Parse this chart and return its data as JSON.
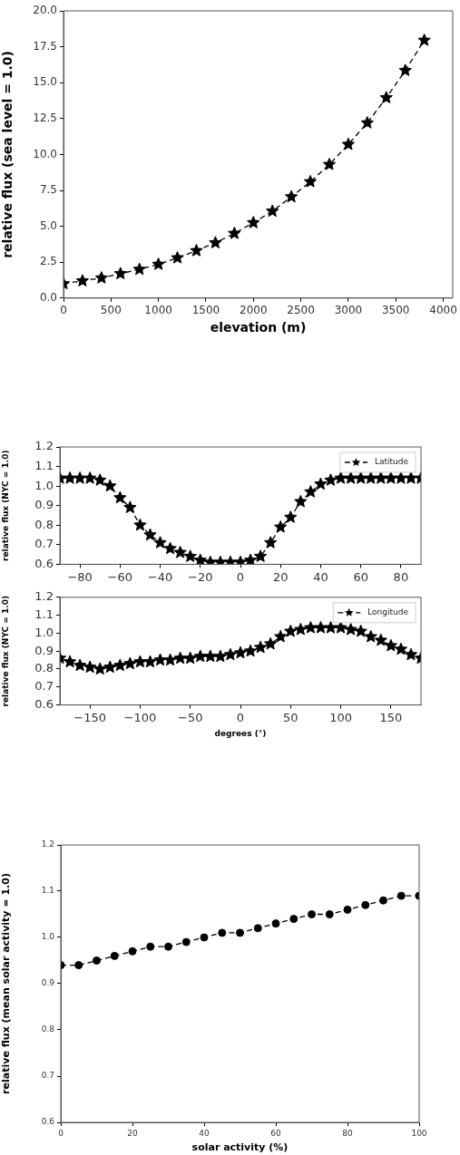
{
  "chart_data": [
    {
      "type": "line",
      "xlabel": "elevation (m)",
      "ylabel": "relative flux (sea level = 1.0)",
      "marker": "star",
      "line_style": "dashed",
      "grid": false,
      "legend": false,
      "x": [
        0,
        200,
        400,
        600,
        800,
        1000,
        1200,
        1400,
        1600,
        1800,
        2000,
        2200,
        2400,
        2600,
        2800,
        3000,
        3200,
        3400,
        3600,
        3800
      ],
      "series": [
        {
          "color": "#000000",
          "values": [
            1.0,
            1.2,
            1.4,
            1.7,
            2.0,
            2.35,
            2.8,
            3.3,
            3.85,
            4.5,
            5.25,
            6.05,
            7.05,
            8.1,
            9.3,
            10.7,
            12.2,
            13.95,
            15.85,
            17.95
          ]
        }
      ],
      "xlim": [
        0,
        4100
      ],
      "xticks": [
        0,
        500,
        1000,
        1500,
        2000,
        2500,
        3000,
        3500,
        4000
      ],
      "ylim": [
        0,
        20
      ],
      "yticks": [
        {
          "value": 0,
          "label": "0.0"
        },
        {
          "value": 2.5,
          "label": "2.5"
        },
        {
          "value": 5,
          "label": "5.0"
        },
        {
          "value": 7.5,
          "label": "7.5"
        },
        {
          "value": 10,
          "label": "10.0"
        },
        {
          "value": 12.5,
          "label": "12.5"
        },
        {
          "value": 15,
          "label": "15.0"
        },
        {
          "value": 17.5,
          "label": "17.5"
        },
        {
          "value": 20,
          "label": "20.0"
        }
      ]
    },
    {
      "type": "line",
      "ylabel": "relative flux (NYC = 1.0)",
      "marker": "star",
      "line_style": "dashed",
      "grid": false,
      "legend": "top right",
      "x": [
        -90,
        -85,
        -80,
        -75,
        -70,
        -65,
        -60,
        -55,
        -50,
        -45,
        -40,
        -35,
        -30,
        -25,
        -20,
        -15,
        -10,
        -5,
        0,
        5,
        10,
        15,
        20,
        25,
        30,
        35,
        40,
        45,
        50,
        55,
        60,
        65,
        70,
        75,
        80,
        85,
        90
      ],
      "series": [
        {
          "name": "Latitude",
          "color": "#000000",
          "values": [
            1.04,
            1.04,
            1.04,
            1.04,
            1.03,
            1.0,
            0.94,
            0.89,
            0.8,
            0.75,
            0.71,
            0.68,
            0.66,
            0.64,
            0.62,
            0.61,
            0.61,
            0.61,
            0.61,
            0.62,
            0.64,
            0.71,
            0.79,
            0.84,
            0.92,
            0.97,
            1.01,
            1.03,
            1.04,
            1.04,
            1.04,
            1.04,
            1.04,
            1.04,
            1.04,
            1.04,
            1.04
          ]
        }
      ],
      "xlim": [
        -90,
        90
      ],
      "xticks": [
        {
          "value": -80,
          "label": "−80"
        },
        {
          "value": -60,
          "label": "−60"
        },
        {
          "value": -40,
          "label": "−40"
        },
        {
          "value": -20,
          "label": "−20"
        },
        0,
        20,
        40,
        60,
        80
      ],
      "ylim": [
        0.6,
        1.2
      ],
      "yticks": [
        0.6,
        0.7,
        0.8,
        0.9,
        {
          "value": 1,
          "label": "1.0"
        },
        1.1,
        1.2
      ]
    },
    {
      "type": "line",
      "xlabel": "degrees (°)",
      "ylabel": "relative flux (NYC = 1.0)",
      "marker": "star",
      "line_style": "dashed",
      "grid": false,
      "legend": "top right",
      "x": [
        -180,
        -170,
        -160,
        -150,
        -140,
        -130,
        -120,
        -110,
        -100,
        -90,
        -80,
        -70,
        -60,
        -50,
        -40,
        -30,
        -20,
        -10,
        0,
        10,
        20,
        30,
        40,
        50,
        60,
        70,
        80,
        90,
        100,
        110,
        120,
        130,
        140,
        150,
        160,
        170,
        180
      ],
      "series": [
        {
          "name": "Longitude",
          "color": "#000000",
          "values": [
            0.86,
            0.84,
            0.82,
            0.81,
            0.8,
            0.81,
            0.82,
            0.83,
            0.84,
            0.84,
            0.85,
            0.85,
            0.86,
            0.86,
            0.87,
            0.87,
            0.87,
            0.88,
            0.89,
            0.9,
            0.92,
            0.94,
            0.98,
            1.01,
            1.02,
            1.03,
            1.03,
            1.03,
            1.03,
            1.02,
            1.01,
            0.98,
            0.96,
            0.93,
            0.91,
            0.88,
            0.86
          ]
        }
      ],
      "xlim": [
        -180,
        180
      ],
      "xticks": [
        {
          "value": -150,
          "label": "−150"
        },
        {
          "value": -100,
          "label": "−100"
        },
        {
          "value": -50,
          "label": "−50"
        },
        0,
        50,
        100,
        150
      ],
      "ylim": [
        0.6,
        1.2
      ],
      "yticks": [
        0.6,
        0.7,
        0.8,
        0.9,
        {
          "value": 1,
          "label": "1.0"
        },
        1.1,
        1.2
      ]
    },
    {
      "type": "line",
      "xlabel": "solar activity (%)",
      "ylabel": "relative flux (mean solar activity = 1.0)",
      "marker": "circle",
      "line_style": "dashed",
      "grid": false,
      "legend": false,
      "x": [
        0,
        5,
        10,
        15,
        20,
        25,
        30,
        35,
        40,
        45,
        50,
        55,
        60,
        65,
        70,
        75,
        80,
        85,
        90,
        95,
        100
      ],
      "series": [
        {
          "color": "#000000",
          "values": [
            0.94,
            0.94,
            0.95,
            0.96,
            0.97,
            0.98,
            0.98,
            0.99,
            1.0,
            1.01,
            1.01,
            1.02,
            1.03,
            1.04,
            1.05,
            1.05,
            1.06,
            1.07,
            1.08,
            1.09,
            1.09
          ]
        }
      ],
      "xlim": [
        0,
        100
      ],
      "xticks": [
        0,
        20,
        40,
        60,
        80,
        100
      ],
      "ylim": [
        0.6,
        1.2
      ],
      "yticks": [
        0.6,
        0.7,
        0.8,
        0.9,
        {
          "value": 1,
          "label": "1.0"
        },
        1.1,
        1.2
      ]
    }
  ]
}
